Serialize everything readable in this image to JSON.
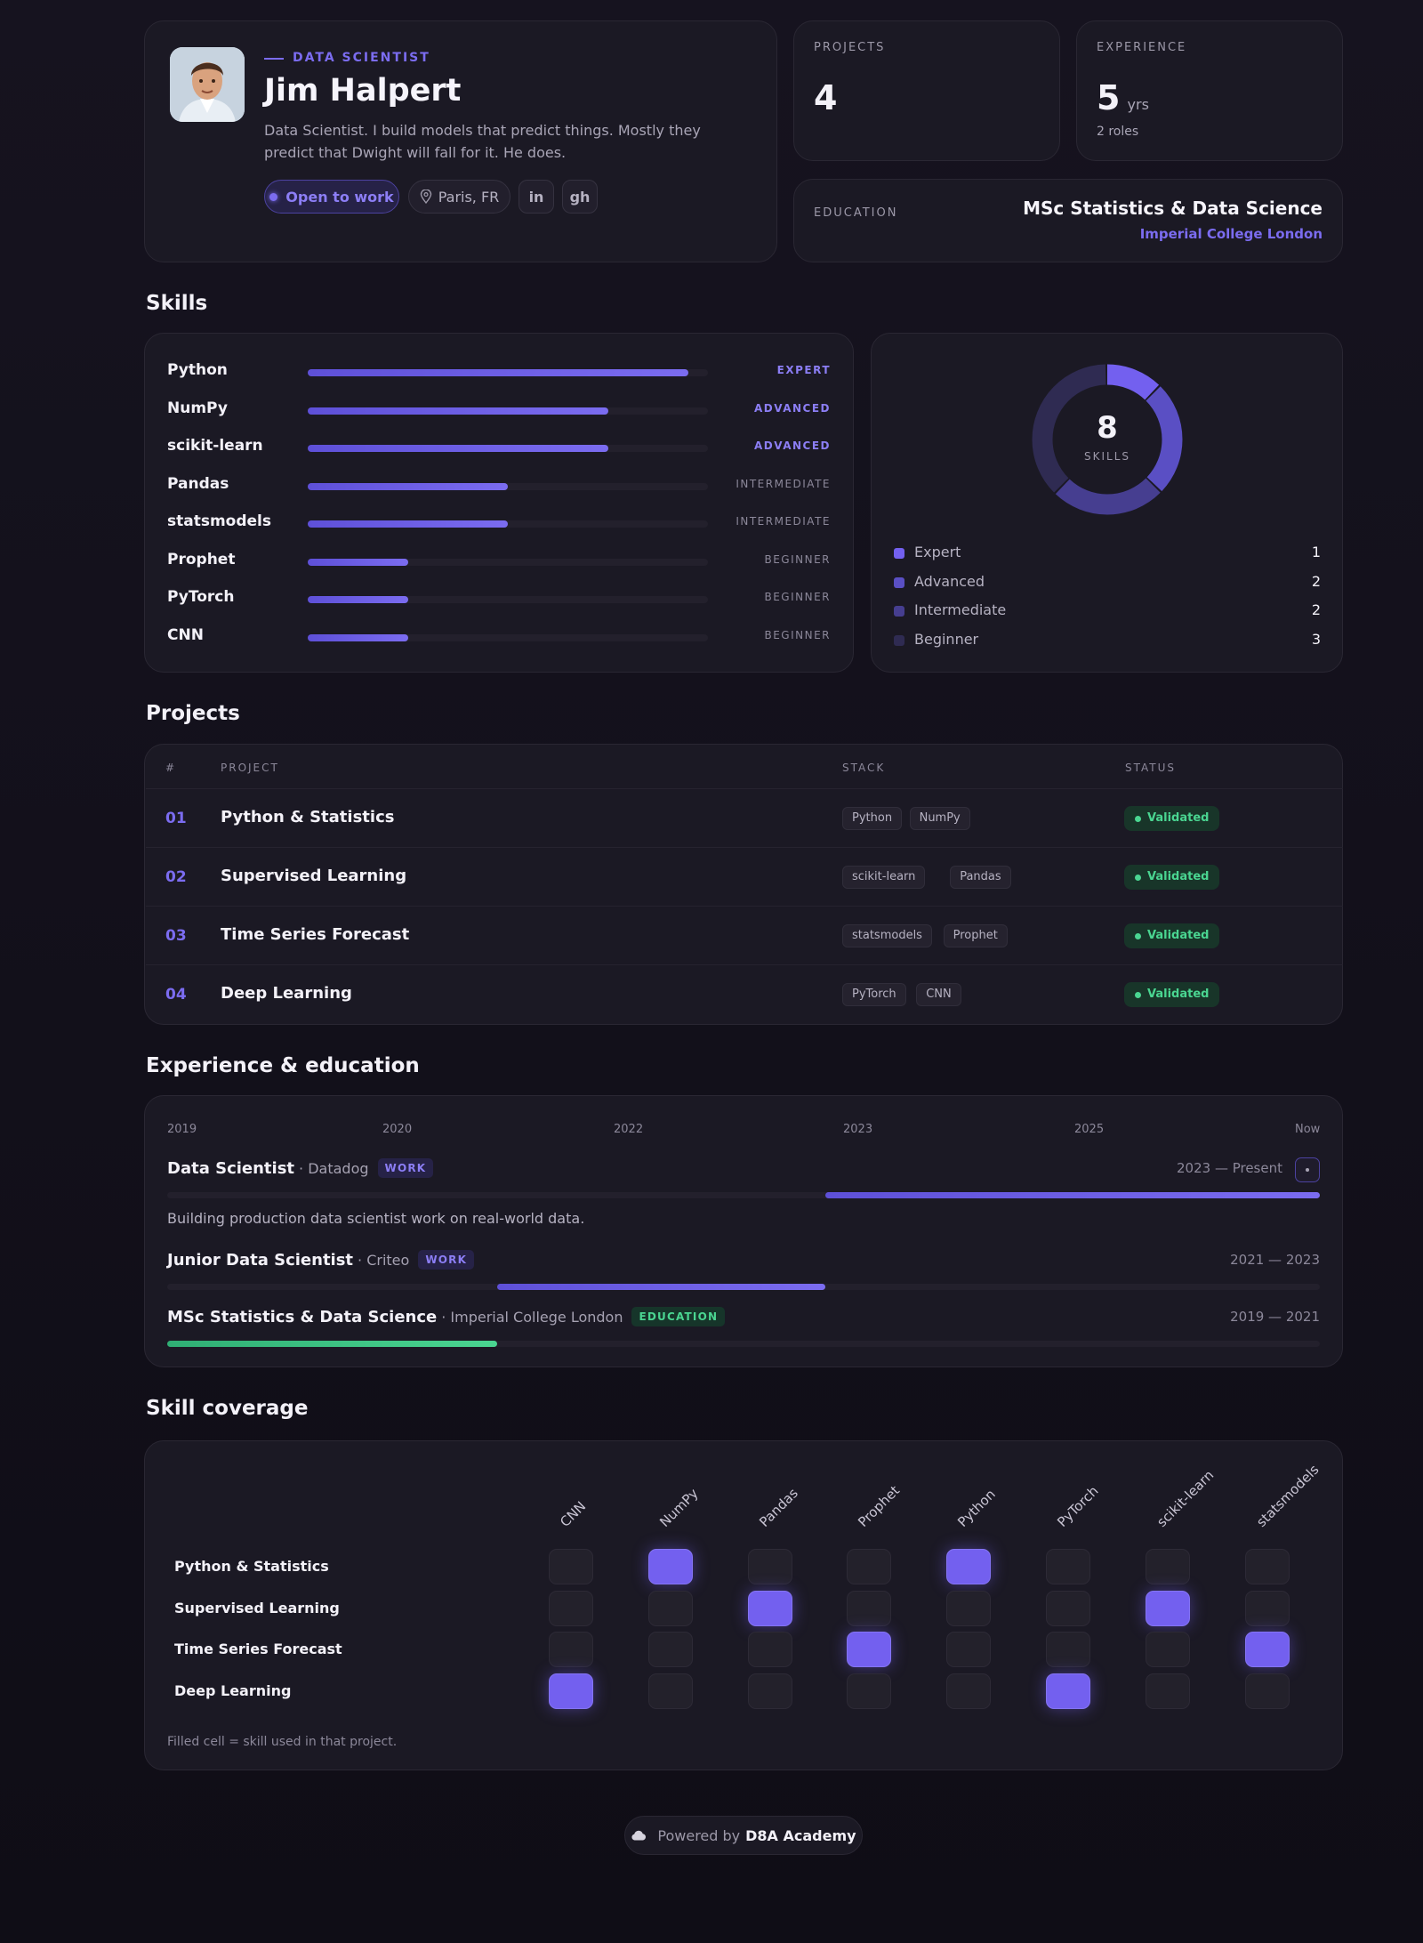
{
  "profile": {
    "role": "DATA SCIENTIST",
    "name": "Jim Halpert",
    "bio": "Data Scientist. I build models that predict things. Mostly they predict that Dwight will fall for it. He does.",
    "status": "Open to work",
    "location": "Paris, FR",
    "linkedin": "in",
    "github": "gh"
  },
  "stats": {
    "projects_label": "PROJECTS",
    "projects_value": "4",
    "experience_label": "EXPERIENCE",
    "experience_value": "5",
    "experience_unit": "yrs",
    "experience_sub": "2 roles",
    "education_label": "EDUCATION",
    "education_degree": "MSc Statistics & Data Science",
    "education_school": "Imperial College London"
  },
  "skills": {
    "title": "Skills",
    "items": [
      {
        "name": "Python",
        "level": "EXPERT",
        "pct": 0.95
      },
      {
        "name": "NumPy",
        "level": "ADVANCED",
        "pct": 0.75
      },
      {
        "name": "scikit-learn",
        "level": "ADVANCED",
        "pct": 0.75
      },
      {
        "name": "Pandas",
        "level": "INTERMEDIATE",
        "pct": 0.5
      },
      {
        "name": "statsmodels",
        "level": "INTERMEDIATE",
        "pct": 0.5
      },
      {
        "name": "Prophet",
        "level": "BEGINNER",
        "pct": 0.25
      },
      {
        "name": "PyTorch",
        "level": "BEGINNER",
        "pct": 0.25
      },
      {
        "name": "CNN",
        "level": "BEGINNER",
        "pct": 0.25
      }
    ],
    "donut": {
      "total": "8",
      "label": "SKILLS"
    },
    "legend": [
      {
        "name": "Expert",
        "count": "1",
        "color": "#7360ef"
      },
      {
        "name": "Advanced",
        "count": "2",
        "color": "#5a4fc4"
      },
      {
        "name": "Intermediate",
        "count": "2",
        "color": "#463e90"
      },
      {
        "name": "Beginner",
        "count": "3",
        "color": "#2f2b52"
      }
    ]
  },
  "projects": {
    "title": "Projects",
    "headers": {
      "num": "#",
      "project": "PROJECT",
      "stack": "STACK",
      "status": "STATUS"
    },
    "rows": [
      {
        "num": "01",
        "name": "Python & Statistics",
        "stack": [
          "Python",
          "NumPy"
        ],
        "status": "Validated"
      },
      {
        "num": "02",
        "name": "Supervised Learning",
        "stack": [
          "scikit-learn",
          "Pandas"
        ],
        "status": "Validated"
      },
      {
        "num": "03",
        "name": "Time Series Forecast",
        "stack": [
          "statsmodels",
          "Prophet"
        ],
        "status": "Validated"
      },
      {
        "num": "04",
        "name": "Deep Learning",
        "stack": [
          "PyTorch",
          "CNN"
        ],
        "status": "Validated"
      }
    ]
  },
  "timeline": {
    "title": "Experience & education",
    "years": [
      "2019",
      "2020",
      "2022",
      "2023",
      "2025",
      "Now"
    ],
    "entries": [
      {
        "title": "Data Scientist",
        "org": "· Datadog",
        "badge": "WORK",
        "dates": "2023 — Present",
        "desc": "Building production data scientist work on real-world data.",
        "start": 0.571,
        "end": 1.0
      },
      {
        "title": "Junior Data Scientist",
        "org": "· Criteo",
        "badge": "WORK",
        "dates": "2021 — 2023",
        "start": 0.286,
        "end": 0.571
      },
      {
        "title": "MSc Statistics & Data Science",
        "org": "· Imperial College London",
        "badge": "EDUCATION",
        "dates": "2019 — 2021",
        "start": 0.0,
        "end": 0.286
      }
    ]
  },
  "coverage": {
    "title": "Skill coverage",
    "columns": [
      "CNN",
      "NumPy",
      "Pandas",
      "Prophet",
      "Python",
      "PyTorch",
      "scikit-learn",
      "statsmodels"
    ],
    "rows": [
      {
        "name": "Python & Statistics",
        "cells": [
          0,
          1,
          0,
          0,
          1,
          0,
          0,
          0
        ]
      },
      {
        "name": "Supervised Learning",
        "cells": [
          0,
          0,
          1,
          0,
          0,
          0,
          1,
          0
        ]
      },
      {
        "name": "Time Series Forecast",
        "cells": [
          0,
          0,
          0,
          1,
          0,
          0,
          0,
          1
        ]
      },
      {
        "name": "Deep Learning",
        "cells": [
          1,
          0,
          0,
          0,
          0,
          1,
          0,
          0
        ]
      }
    ],
    "note": "Filled cell = skill used in that project."
  },
  "footer": {
    "prefix": "Powered by",
    "brand": "D8A Academy"
  },
  "colors": {
    "accent": "#7b6cf0",
    "success": "#4ad591",
    "background": "#15121c"
  }
}
